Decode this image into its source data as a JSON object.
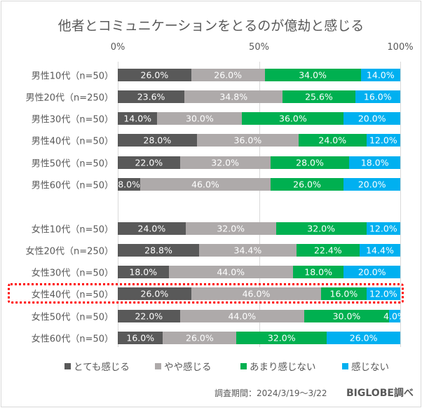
{
  "chart_data": {
    "type": "bar",
    "orientation": "horizontal-stacked-100",
    "title": "他者とコミュニケーションをとるのが億劫と感じる",
    "xlim": [
      0,
      100
    ],
    "x_ticks": [
      "0%",
      "50%",
      "100%"
    ],
    "grid": true,
    "legend_placement": "bottom",
    "categories": [
      "男性10代（n=50）",
      "男性20代（n=250）",
      "男性30代（n=50）",
      "男性40代（n=50）",
      "男性50代（n=50）",
      "男性60代（n=50）",
      "女性10代（n=50）",
      "女性20代（n=250）",
      "女性30代（n=50）",
      "女性40代（n=50）",
      "女性50代（n=50）",
      "女性60代（n=50）"
    ],
    "series": [
      {
        "name": "とても感じる",
        "color": "#595959",
        "values": [
          26.0,
          23.6,
          14.0,
          28.0,
          22.0,
          8.0,
          24.0,
          28.8,
          18.0,
          26.0,
          22.0,
          16.0
        ]
      },
      {
        "name": "やや感じる",
        "color": "#aeaaaa",
        "values": [
          26.0,
          34.8,
          30.0,
          36.0,
          32.0,
          46.0,
          32.0,
          34.4,
          44.0,
          46.0,
          44.0,
          26.0
        ]
      },
      {
        "name": "あまり感じない",
        "color": "#00b050",
        "values": [
          34.0,
          25.6,
          36.0,
          24.0,
          28.0,
          26.0,
          32.0,
          22.4,
          18.0,
          16.0,
          30.0,
          32.0
        ]
      },
      {
        "name": "感じない",
        "color": "#00b0f0",
        "values": [
          14.0,
          16.0,
          20.0,
          12.0,
          18.0,
          20.0,
          12.0,
          14.4,
          20.0,
          12.0,
          4.0,
          26.0
        ]
      }
    ],
    "highlighted_category": "女性40代（n=50）",
    "highlight_color": "#ff0000"
  },
  "footer": {
    "period": "調査期間：2024/3/19～3/22",
    "source": "BIGLOBE調べ"
  }
}
